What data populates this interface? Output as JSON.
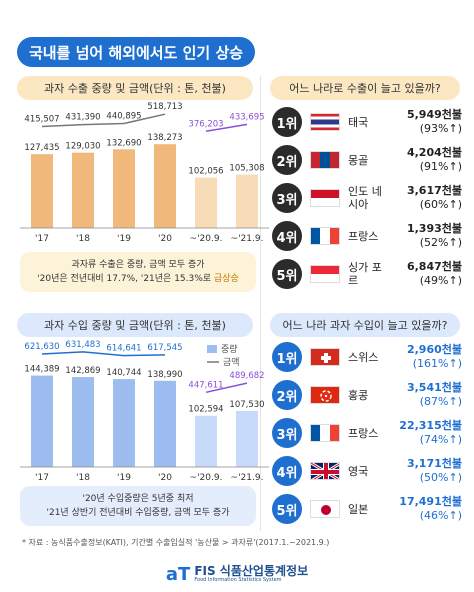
{
  "title": "국내를 넘어 해외에서도 인기 상승",
  "export_section": {
    "chart_title": "과자 수출 중량 및 금액(단위 : 톤, 천불)",
    "note_line1": "과자류 수출은 중량, 금액 모두 증가",
    "note_line2_prefix": "'20년은 전년대비 17.7%, '21년은 15.3%로 ",
    "note_line2_hl": "급상승"
  },
  "import_section": {
    "chart_title": "과자 수입 중량 및 금액(단위 : 톤, 천불)",
    "legend_weight": "중량",
    "legend_amount": "금액",
    "note_line1": "'20년 수입중량은 5년중 최저",
    "note_line2": "'21년 상반기 전년대비 수입중량, 금액 모두 증가"
  },
  "export_ranking": {
    "question": "어느 나라로 수출이 늘고 있을까?",
    "items": [
      {
        "rank": "1위",
        "country": "태국",
        "amount": "5,949천불",
        "growth": "(93%↑)",
        "flag": "thailand-flag"
      },
      {
        "rank": "2위",
        "country": "몽골",
        "amount": "4,204천불",
        "growth": "(91%↑)",
        "flag": "mongolia-flag"
      },
      {
        "rank": "3위",
        "country": "인도 네시아",
        "amount": "3,617천불",
        "growth": "(60%↑)",
        "flag": "indonesia-flag"
      },
      {
        "rank": "4위",
        "country": "프랑스",
        "amount": "1,393천불",
        "growth": "(52%↑)",
        "flag": "france-flag"
      },
      {
        "rank": "5위",
        "country": "싱가 포르",
        "amount": "6,847천불",
        "growth": "(49%↑)",
        "flag": "singapore-flag"
      }
    ]
  },
  "import_ranking": {
    "question": "어느 나라 과자 수입이 늘고 있을까?",
    "items": [
      {
        "rank": "1위",
        "country": "스위스",
        "amount": "2,960천불",
        "growth": "(161%↑)",
        "flag": "switzerland-flag"
      },
      {
        "rank": "2위",
        "country": "홍콩",
        "amount": "3,541천불",
        "growth": "(87%↑)",
        "flag": "hongkong-flag"
      },
      {
        "rank": "3위",
        "country": "프랑스",
        "amount": "22,315천불",
        "growth": "(74%↑)",
        "flag": "france-flag"
      },
      {
        "rank": "4위",
        "country": "영국",
        "amount": "3,171천불",
        "growth": "(50%↑)",
        "flag": "uk-flag"
      },
      {
        "rank": "5위",
        "country": "일본",
        "amount": "17,491천불",
        "growth": "(46%↑)",
        "flag": "japan-flag"
      }
    ]
  },
  "source": "* 자료 : 농식품수출정보(KATI), 기간별 수출입실적 '농산물 > 과자류'(2017.1.~2021.9.)",
  "footer": {
    "mark": "aT",
    "name": "FIS 식품산업통계정보",
    "sub": "Food Information Statistics System"
  },
  "colors": {
    "accent": "#1f6fd1",
    "export_bar": "#f0b87a",
    "export_bar_light": "#f8dcb8",
    "import_bar": "#9dbdf0",
    "import_bar_light": "#c8dafa",
    "purple_line": "#8a4fd8"
  },
  "chart_data": [
    {
      "type": "bar",
      "title": "과자 수출 중량 및 금액(단위 : 톤, 천불)",
      "categories": [
        "'17",
        "'18",
        "'19",
        "'20",
        "~'20.9.",
        "~'21.9."
      ],
      "series": [
        {
          "values": [
            127435,
            129030,
            132690,
            138273,
            102056,
            105308
          ]
        },
        {
          "values": [
            415507,
            431390,
            440895,
            518713,
            376203,
            433695
          ]
        }
      ]
    },
    {
      "type": "bar",
      "title": "과자 수입 중량 및 금액(단위 : 톤, 천불)",
      "categories": [
        "'17",
        "'18",
        "'19",
        "'20",
        "~'20.9.",
        "~'21.9."
      ],
      "series": [
        {
          "name": "중량",
          "values": [
            144389,
            142869,
            140744,
            138990,
            102594,
            107530
          ]
        },
        {
          "name": "금액",
          "values": [
            621630,
            631483,
            614641,
            617545,
            447611,
            489682
          ]
        }
      ]
    }
  ]
}
